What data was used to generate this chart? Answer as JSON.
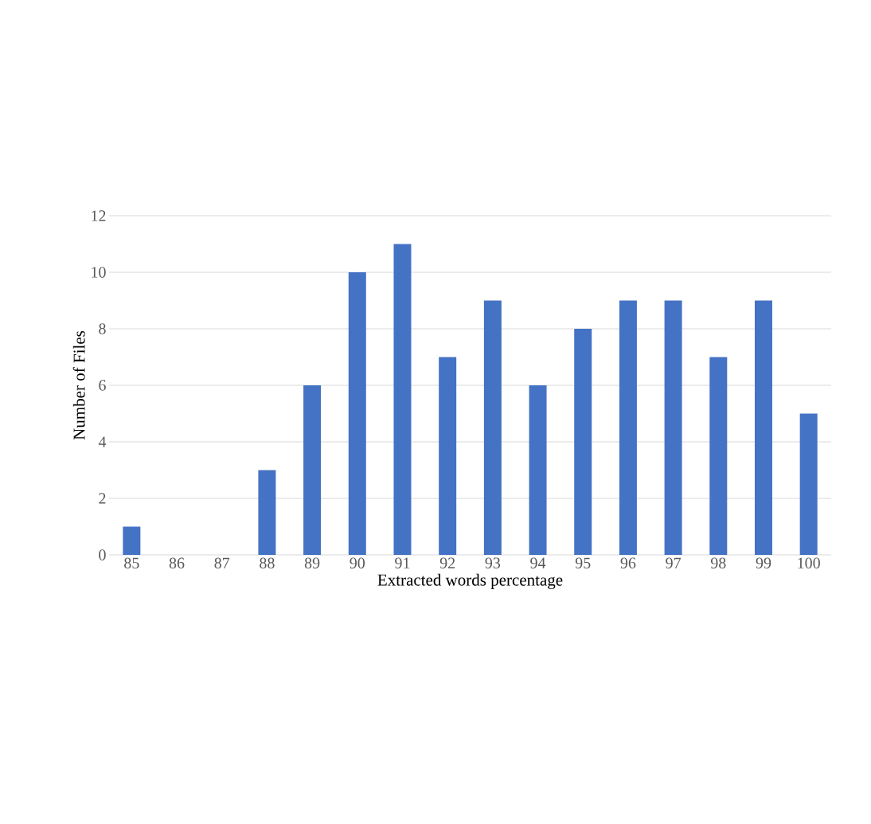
{
  "chart_data": {
    "type": "bar",
    "xlabel": "Extracted words percentage",
    "ylabel": "Number of Files",
    "categories": [
      "85",
      "86",
      "87",
      "88",
      "89",
      "90",
      "91",
      "92",
      "93",
      "94",
      "95",
      "96",
      "97",
      "98",
      "99",
      "100"
    ],
    "values": [
      1,
      0,
      0,
      3,
      6,
      10,
      11,
      7,
      9,
      6,
      8,
      9,
      9,
      7,
      9,
      5
    ],
    "color": "#4472c4",
    "ylim": [
      0,
      12
    ],
    "yticks": [
      0,
      2,
      4,
      6,
      8,
      10,
      12
    ],
    "grid": "y"
  }
}
